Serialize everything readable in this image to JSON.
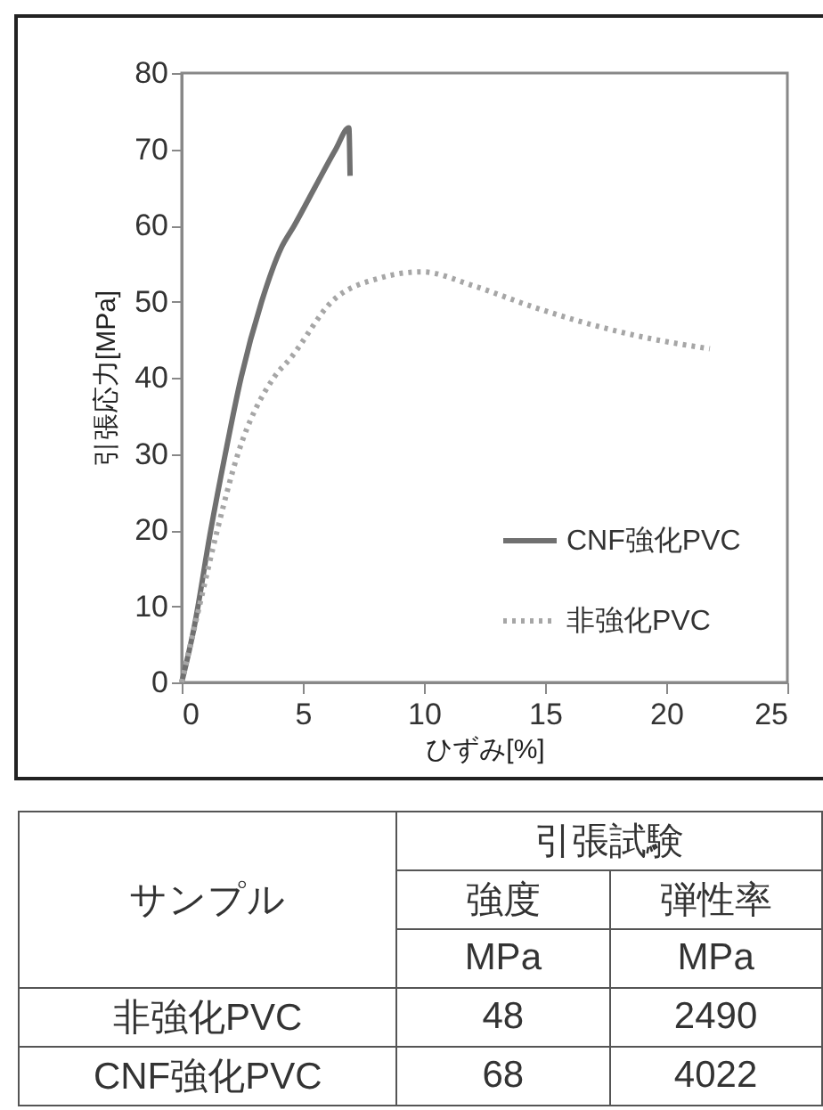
{
  "chart_data": [
    {
      "type": "line",
      "xlabel": "ひずみ[%]",
      "ylabel": "引張応力[MPa]",
      "xlim": [
        0,
        25
      ],
      "xticks": [
        0,
        5,
        10,
        15,
        20,
        25
      ],
      "ylim": [
        0,
        80
      ],
      "yticks": [
        0,
        10,
        20,
        30,
        40,
        50,
        60,
        70,
        80
      ],
      "grid": false,
      "legend": "bottom right",
      "marker": "none",
      "series": [
        {
          "name": "CNF強化PVC",
          "color": "#707070",
          "line_style": "solid",
          "x": [
            0,
            0.5,
            1.2,
            1.8,
            2.45,
            3.3,
            4.1,
            4.65,
            5.5,
            6.36,
            6.9,
            6.95
          ],
          "values": [
            0,
            7,
            20,
            30,
            40,
            50,
            57,
            60,
            65,
            70,
            72.8,
            66.5
          ]
        },
        {
          "name": "非強化PVC",
          "color": "#a6a6a6",
          "line_style": "dotted",
          "x": [
            0,
            0.73,
            1.47,
            2.32,
            3.8,
            4.5,
            6.2,
            8.2,
            9.9,
            12.1,
            14.5,
            17,
            19.4,
            21.8
          ],
          "values": [
            0,
            10,
            20,
            30,
            40,
            42.6,
            50,
            53.1,
            53.9,
            52,
            49.3,
            46.9,
            45.1,
            43.8
          ]
        }
      ]
    },
    {
      "type": "other",
      "annotations": [
        "サンプル",
        "引張試験",
        "強度",
        "弾性率",
        "MPa",
        "MPa",
        "非強化PVC",
        "48",
        "2490",
        "CNF強化PVC",
        "68",
        "4022"
      ]
    }
  ]
}
